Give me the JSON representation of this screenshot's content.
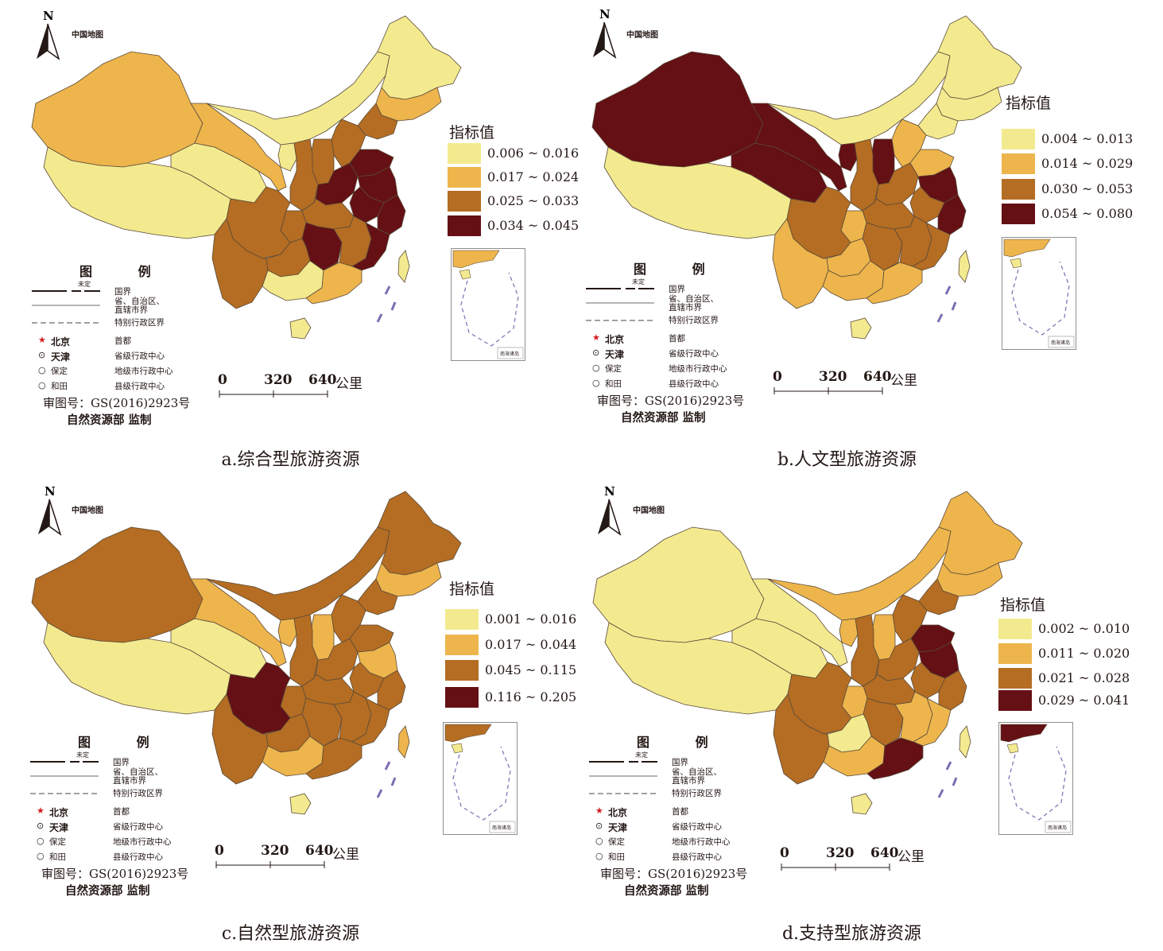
{
  "map_title": "中国地图",
  "north_label": "N",
  "legend_title": "指标值",
  "scale": {
    "ticks": [
      "0",
      "320",
      "640"
    ],
    "unit": "公里"
  },
  "tuli": {
    "heading": "图 例",
    "undetermined": "未定",
    "lines": [
      {
        "label": "国界",
        "style": "national"
      },
      {
        "label": "省、自治区、\n直辖市界",
        "style": "provincial"
      },
      {
        "label": "特别行政区界",
        "style": "sar"
      }
    ],
    "points": [
      {
        "symbol": "★",
        "name": "北京",
        "meaning": "首都",
        "color": "#d7191c"
      },
      {
        "symbol": "⊙",
        "name": "天津",
        "meaning": "省级行政中心",
        "color": "#231815"
      },
      {
        "symbol": "○",
        "name": "保定",
        "meaning": "地级市行政中心",
        "color": "#231815"
      },
      {
        "symbol": "○",
        "name": "和田",
        "meaning": "县级行政中心",
        "color": "#231815"
      }
    ],
    "approval": "审图号：GS(2016)2923号",
    "ministry": "自然资源部  监制"
  },
  "inset_caption": "南海诸岛",
  "colors": {
    "c1": "#f3ea8f",
    "c2": "#edb54c",
    "c3": "#b46d22",
    "c4": "#641014"
  },
  "panels": [
    {
      "caption": "a.综合型旅游资源",
      "classes": [
        "0.006 ~ 0.016",
        "0.017 ~ 0.024",
        "0.025 ~ 0.033",
        "0.034 ~ 0.045"
      ],
      "regions": {
        "xinjiang": 2,
        "xizang": 1,
        "qinghai": 1,
        "neimenggu": 1,
        "heilongjiang": 1,
        "jilin": 2,
        "liaoning": 3,
        "gansu": 2,
        "ningxia": 1,
        "shaanxi": 3,
        "shanxi": 3,
        "hebei": 3,
        "shandong": 4,
        "henan": 4,
        "sichuan": 3,
        "chongqing": 3,
        "hubei": 3,
        "hunan": 4,
        "jiangxi": 3,
        "anhui": 4,
        "jiangsu": 4,
        "zhejiang": 4,
        "fujian": 4,
        "guangdong": 2,
        "guangxi": 1,
        "guizhou": 3,
        "yunnan": 3,
        "hainan": 1,
        "taiwan": 1
      }
    },
    {
      "caption": "b.人文型旅游资源",
      "classes": [
        "0.004 ~ 0.013",
        "0.014 ~ 0.029",
        "0.030 ~ 0.053",
        "0.054 ~ 0.080"
      ],
      "regions": {
        "xinjiang": 4,
        "xizang": 1,
        "qinghai": 4,
        "neimenggu": 1,
        "heilongjiang": 1,
        "jilin": 1,
        "liaoning": 1,
        "gansu": 4,
        "ningxia": 4,
        "shaanxi": 3,
        "shanxi": 4,
        "hebei": 2,
        "shandong": 2,
        "henan": 3,
        "sichuan": 3,
        "chongqing": 2,
        "hubei": 3,
        "hunan": 3,
        "jiangxi": 3,
        "anhui": 3,
        "jiangsu": 4,
        "zhejiang": 4,
        "fujian": 3,
        "guangdong": 2,
        "guangxi": 2,
        "guizhou": 2,
        "yunnan": 2,
        "hainan": 1,
        "taiwan": 1
      }
    },
    {
      "caption": "c.自然型旅游资源",
      "classes": [
        "0.001 ~ 0.016",
        "0.017 ~ 0.044",
        "0.045 ~ 0.115",
        "0.116 ~ 0.205"
      ],
      "regions": {
        "xinjiang": 3,
        "xizang": 1,
        "qinghai": 1,
        "neimenggu": 3,
        "heilongjiang": 3,
        "jilin": 2,
        "liaoning": 3,
        "gansu": 2,
        "ningxia": 2,
        "shaanxi": 3,
        "shanxi": 2,
        "hebei": 3,
        "shandong": 3,
        "henan": 3,
        "sichuan": 4,
        "chongqing": 3,
        "hubei": 3,
        "hunan": 3,
        "jiangxi": 3,
        "anhui": 3,
        "jiangsu": 2,
        "zhejiang": 3,
        "fujian": 3,
        "guangdong": 3,
        "guangxi": 2,
        "guizhou": 3,
        "yunnan": 3,
        "hainan": 1,
        "taiwan": 2
      }
    },
    {
      "caption": "d.支持型旅游资源",
      "classes": [
        "0.002 ~ 0.010",
        "0.011 ~ 0.020",
        "0.021 ~ 0.028",
        "0.029 ~ 0.041"
      ],
      "regions": {
        "xinjiang": 1,
        "xizang": 1,
        "qinghai": 1,
        "neimenggu": 2,
        "heilongjiang": 2,
        "jilin": 2,
        "liaoning": 3,
        "gansu": 1,
        "ningxia": 2,
        "shaanxi": 3,
        "shanxi": 2,
        "hebei": 3,
        "shandong": 4,
        "henan": 3,
        "sichuan": 3,
        "chongqing": 2,
        "hubei": 3,
        "hunan": 3,
        "jiangxi": 2,
        "anhui": 3,
        "jiangsu": 4,
        "zhejiang": 3,
        "fujian": 2,
        "guangdong": 4,
        "guangxi": 2,
        "guizhou": 1,
        "yunnan": 3,
        "hainan": 1,
        "taiwan": 1
      }
    }
  ]
}
